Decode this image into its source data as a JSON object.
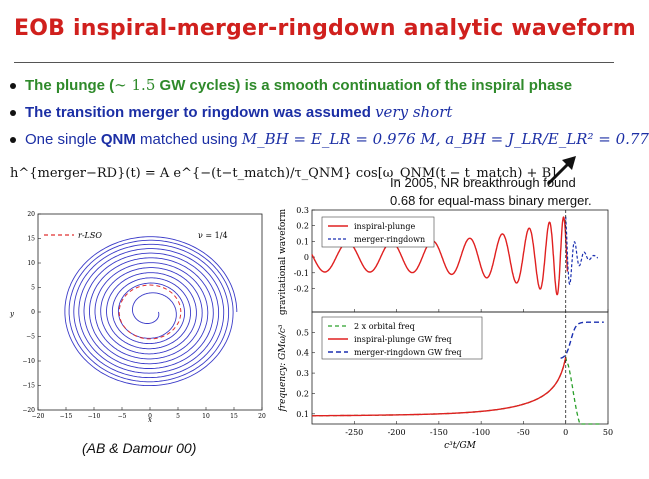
{
  "slide": {
    "title": "EOB inspiral-merger-ringdown analytic waveform",
    "bullets": {
      "b1_text": "The plunge (",
      "b1_math": "∼ 1.5",
      "b1_rest": " GW cycles) is a smooth continuation of the inspiral phase",
      "b2_text": "The transition merger to ringdown was assumed ",
      "b2_em": "very short",
      "b3_pre": "One single ",
      "b3_qnm": "QNM",
      "b3_mid": " matched using ",
      "b3_math": "M_BH = E_LR = 0.976 M, a_BH = J_LR/E_LR² = 0.77"
    },
    "formula": "h^{merger−RD}(t) = A e^{−(t−t_match)/τ_QNM} cos[ω_QNM(t − t_match) + B]",
    "note_line1": "In 2005, NR breakthrough found",
    "note_line2": "0.68 for equal-mass binary merger.",
    "citation": "(AB & Damour 00)"
  },
  "orbit_plot": {
    "legend_label": "r-LSO",
    "nu_label": "ν = 1/4",
    "xlabel": "x",
    "ylabel": "y",
    "x_ticks": [
      "−20",
      "−15",
      "−10",
      "−5",
      "0",
      "5",
      "10",
      "15",
      "20"
    ],
    "y_ticks": [
      "20",
      "15",
      "10",
      "5",
      "0",
      "−5",
      "−10",
      "−15",
      "−20"
    ]
  },
  "chart_data": [
    {
      "type": "line",
      "ylabel": "gravitational waveform",
      "ylim": [
        -0.35,
        0.3
      ],
      "xlim": [
        -300,
        50
      ],
      "y_ticks": [
        "0.3",
        "0.2",
        "0.1",
        "0",
        "-0.1",
        "-0.2"
      ],
      "series": [
        {
          "name": "inspiral-plunge",
          "color": "#e02020"
        },
        {
          "name": "merger-ringdown",
          "color": "#1a2fb0"
        }
      ]
    },
    {
      "type": "line",
      "ylabel": "frequency: GMω/c³",
      "xlabel": "c³t/GM",
      "ylim": [
        0.05,
        0.6
      ],
      "xlim": [
        -300,
        50
      ],
      "x_ticks": [
        -250,
        -200,
        -150,
        -100,
        -50,
        0,
        50
      ],
      "y_ticks": [
        "0.5",
        "0.4",
        "0.3",
        "0.2",
        "0.1"
      ],
      "series": [
        {
          "name": "2 x orbital freq",
          "color": "#2aa02a"
        },
        {
          "name": "inspiral-plunge GW freq",
          "color": "#e02020"
        },
        {
          "name": "merger-ringdown GW freq",
          "color": "#1a2fb0"
        }
      ]
    }
  ]
}
